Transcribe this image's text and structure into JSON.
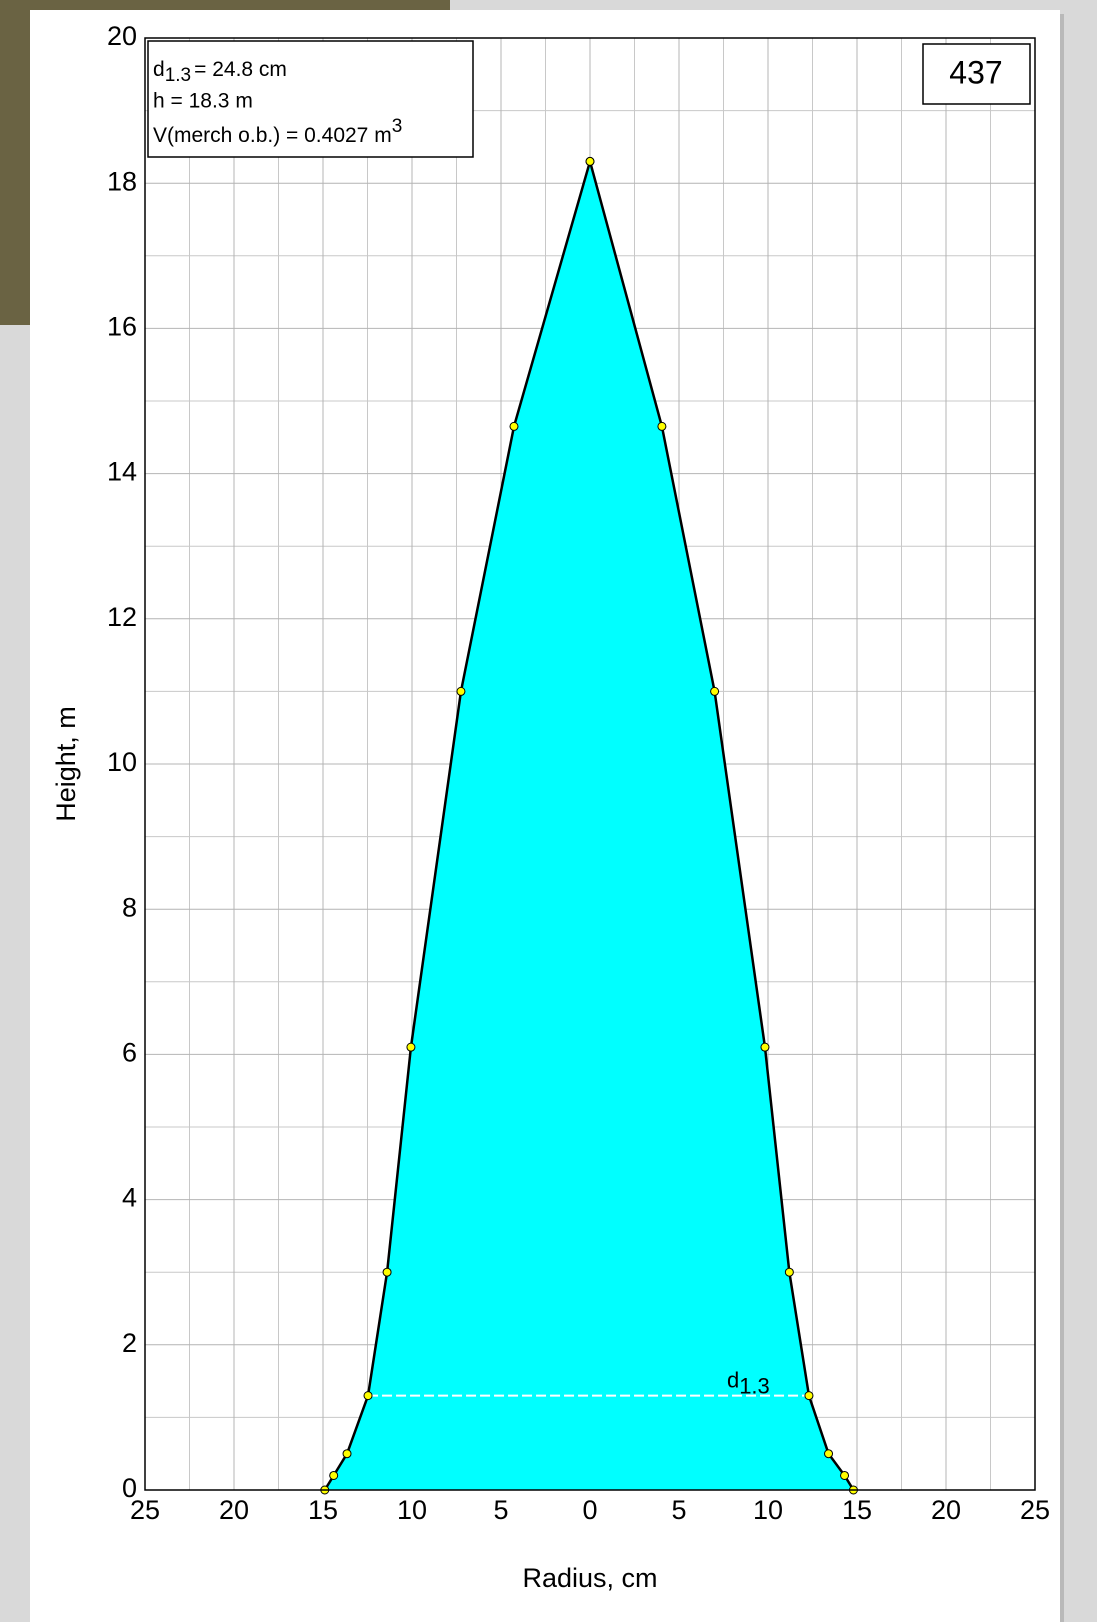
{
  "chart_data": {
    "type": "stem-profile",
    "xlabel": "Radius, cm",
    "ylabel": "Height, m",
    "tree_id": "437",
    "info": {
      "d_symbol": "d",
      "d_sub": "1.3",
      "d_text": "= 24.8 cm",
      "h_text": "h = 18.3 m",
      "v_text": "V(merch o.b.) = 0.4027 m",
      "v_sup": "3"
    },
    "marker_label": {
      "symbol": "d",
      "sub": "1.3"
    },
    "fill": "#00ffff",
    "series": [
      {
        "color": "#000000",
        "x": [
          -14.9,
          -14.4,
          -13.65,
          -12.47,
          -11.4,
          -10.06,
          -7.25,
          -4.27,
          0
        ],
        "values": [
          0,
          0.2,
          0.5,
          1.3,
          3.0,
          6.1,
          11.0,
          14.65,
          18.3
        ]
      },
      {
        "color": "#000000",
        "x": [
          14.8,
          14.3,
          13.4,
          12.3,
          11.2,
          9.83,
          7.0,
          4.04,
          0
        ],
        "values": [
          0,
          0.2,
          0.5,
          1.3,
          3.0,
          6.1,
          11.0,
          14.65,
          18.3
        ]
      }
    ],
    "point_color": "#ffff00",
    "xlim": [
      -25,
      25
    ],
    "xticks": [
      {
        "value": -25,
        "label": "25"
      },
      {
        "value": -20,
        "label": "20"
      },
      {
        "value": -15,
        "label": "15"
      },
      {
        "value": -10,
        "label": "10"
      },
      {
        "value": -5,
        "label": "5"
      },
      0,
      5,
      10,
      15,
      20,
      25
    ],
    "ylim": [
      0,
      20
    ],
    "yticks": [
      0,
      2,
      4,
      6,
      8,
      10,
      12,
      14,
      16,
      18,
      20
    ],
    "grid": true
  }
}
